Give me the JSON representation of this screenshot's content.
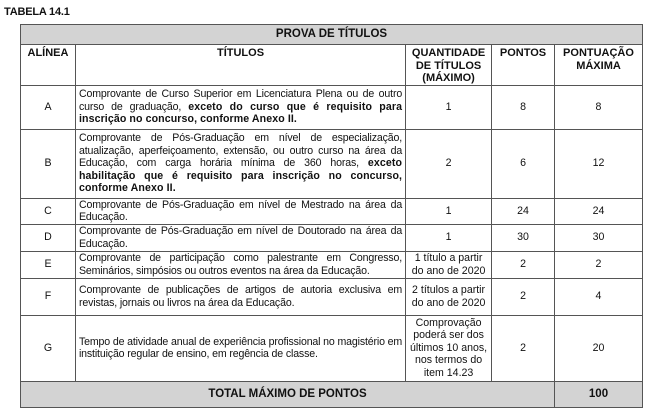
{
  "caption": "TABELA 14.1",
  "table_title": "PROVA DE TÍTULOS",
  "headers": [
    "ALÍNEA",
    "TÍTULOS",
    "QUANTIDADE DE TÍTULOS (MÁXIMO)",
    "PONTOS",
    "PONTUAÇÃO MÁXIMA"
  ],
  "rows": [
    {
      "alinea": "A",
      "titulo": [
        {
          "text": "Comprovante de Curso Superior em Licenciatura Plena ou de outro curso de graduação, ",
          "bold": false
        },
        {
          "text": "exceto do curso que é requisito para inscrição no concurso, conforme Anexo II.",
          "bold": true
        }
      ],
      "quantidade": "1",
      "pontos": "8",
      "maxima": "8"
    },
    {
      "alinea": "B",
      "titulo": [
        {
          "text": "Comprovante de Pós-Graduação em nível de especialização, atualização, aperfeiçoamento, extensão, ou outro curso na área da Educação, com carga horária mínima de 360 horas, ",
          "bold": false
        },
        {
          "text": "exceto habilitação que é requisito para inscrição no concurso, conforme Anexo II.",
          "bold": true
        }
      ],
      "quantidade": "2",
      "pontos": "6",
      "maxima": "12"
    },
    {
      "alinea": "C",
      "titulo": [
        {
          "text": "Comprovante de Pós-Graduação em nível de Mestrado na área da Educação.",
          "bold": false
        }
      ],
      "quantidade": "1",
      "pontos": "24",
      "maxima": "24"
    },
    {
      "alinea": "D",
      "titulo": [
        {
          "text": "Comprovante de Pós-Graduação em nível de Doutorado na área da Educação.",
          "bold": false
        }
      ],
      "quantidade": "1",
      "pontos": "30",
      "maxima": "30"
    },
    {
      "alinea": "E",
      "titulo": [
        {
          "text": "Comprovante de participação como palestrante em Congresso, Seminários, simpósios ou outros eventos na área da Educação.",
          "bold": false
        }
      ],
      "quantidade": "1 título a partir do ano de 2020",
      "pontos": "2",
      "maxima": "2"
    },
    {
      "alinea": "F",
      "titulo": [
        {
          "text": "Comprovante de publicações de artigos de autoria exclusiva em revistas, jornais ou livros na área da Educação.",
          "bold": false
        }
      ],
      "quantidade": "2 títulos a partir do ano de 2020",
      "pontos": "2",
      "maxima": "4"
    },
    {
      "alinea": "G",
      "titulo": [
        {
          "text": "Tempo de atividade anual de experiência profissional no magistério em instituição regular de ensino, em regência de classe.",
          "bold": false
        }
      ],
      "quantidade": "Comprovação poderá ser dos últimos 10 anos, nos termos do item 14.23",
      "pontos": "2",
      "maxima": "20"
    }
  ],
  "total": {
    "label": "TOTAL MÁXIMO DE PONTOS",
    "value": "100"
  }
}
